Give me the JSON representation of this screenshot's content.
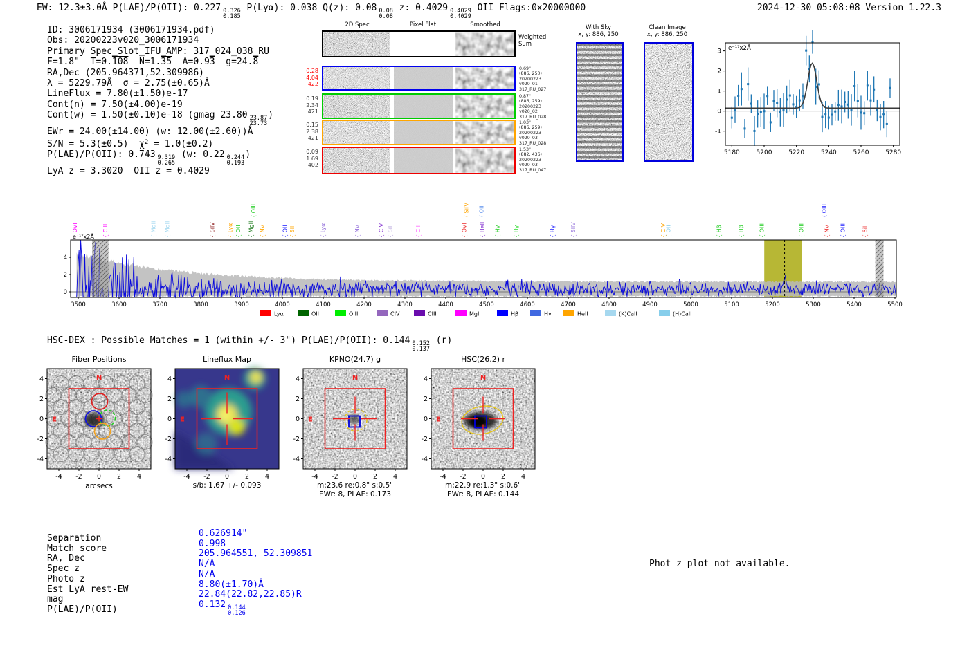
{
  "header": {
    "line": [
      {
        "t": "EW: 12.3±3.0Å  P(LAE)/P(OII): 0.227"
      },
      {
        "frac": [
          "0.326",
          "0.185"
        ]
      },
      {
        "t": "  P(Lyα): 0.038  Q(z): 0.08"
      },
      {
        "frac": [
          "0.08",
          "0.08"
        ]
      },
      {
        "t": "  z: 0.4029"
      },
      {
        "frac": [
          "0.4029",
          "0.4029"
        ]
      },
      {
        "t": " OII   Flags:0x20000000"
      }
    ],
    "datetime_version": "2024-12-30 05:08:08  Version 1.22.3"
  },
  "info_block": {
    "lines": [
      [
        {
          "t": "ID: 3006171934 (3006171934.pdf)"
        }
      ],
      [
        {
          "t": "Obs: 20200223v020_3006171934"
        }
      ],
      [
        {
          "t": "Primary Spec_Slot_IFU_AMP: 317_024_038_RU"
        }
      ],
      [
        {
          "t": "F=1.8\"  T=0."
        },
        {
          "ol": "108"
        },
        {
          "t": "  N=1."
        },
        {
          "ol": "35"
        },
        {
          "t": "  A=0.9"
        },
        {
          "ol": "3"
        },
        {
          "t": "  g=24."
        },
        {
          "ol": "8"
        }
      ],
      [
        {
          "t": "RA,Dec (205.964371,52.309986)"
        }
      ],
      [
        {
          "t": "λ = 5229.79Å  σ = 2.75(±0.65)Å"
        }
      ],
      [
        {
          "t": "LineFlux = 7.80(±1.50)e-17"
        }
      ],
      [
        {
          "t": "Cont(n) = 7.50(±4.00)e-19"
        }
      ],
      [
        {
          "t": "Cont(w) = 1.50(±0.10)e-18 (gmag 23.80"
        },
        {
          "frac": [
            "23.87",
            "23.73"
          ]
        },
        {
          "t": ")"
        }
      ],
      [
        {
          "t": "EWr = 24.00(±14.00) (w: 12.00(±2.60))Å"
        }
      ],
      [
        {
          "t": "S/N = 5.3(±0.5)  χ"
        },
        {
          "sup": "2"
        },
        {
          "t": " = 1.0(±0.2)"
        }
      ],
      [
        {
          "t": "P(LAE)/P(OII): 0.743"
        },
        {
          "frac": [
            "9.319",
            "0.265"
          ]
        },
        {
          "t": " (w: 0.22"
        },
        {
          "frac": [
            "0.244",
            "0.193"
          ]
        },
        {
          "t": ")"
        }
      ],
      [
        {
          "t": "LyA z = 3.3020  OII z = 0.4029"
        }
      ]
    ]
  },
  "spec2d": {
    "col_headers": [
      "2D Spec",
      "Pixel Flat",
      "Smoothed"
    ],
    "weighted_sum_label": "Weighted\nSum",
    "rows": [
      {
        "border": "#000000",
        "left": [],
        "left_color": "#000000",
        "right": []
      },
      {
        "border": "#0000ee",
        "left": [
          "0.28",
          "4.04",
          "422"
        ],
        "left_color": "#ff0000",
        "right": [
          "0.69\"",
          "(886, 250)",
          "20200223",
          "v020_01",
          "317_RU_027"
        ]
      },
      {
        "border": "#00cc00",
        "left": [
          "0.19",
          "2.34",
          "421"
        ],
        "left_color": "#333333",
        "right": [
          "0.87\"",
          "(886, 259)",
          "20200223",
          "v020_02",
          "317_RU_028"
        ]
      },
      {
        "border": "#ffa500",
        "left": [
          "0.15",
          "2.38",
          "421"
        ],
        "left_color": "#333333",
        "right": [
          "1.03\"",
          "(886, 259)",
          "20200223",
          "v020_03",
          "317_RU_028"
        ]
      },
      {
        "border": "#ee0000",
        "left": [
          "0.09",
          "1.69",
          "402"
        ],
        "left_color": "#333333",
        "right": [
          "1.53\"",
          "(882, 436)",
          "20200223",
          "v020_03",
          "317_RU_047"
        ]
      }
    ]
  },
  "sky_panels": {
    "with_sky": {
      "title": "With Sky",
      "coords": "x, y: 886, 250"
    },
    "clean": {
      "title": "Clean Image",
      "coords": "x, y: 886, 250"
    }
  },
  "chart_data": [
    {
      "type": "line",
      "name": "line-fit-zoom",
      "inset_label": "e⁻¹⁷x2Å",
      "xlim": [
        5176,
        5284
      ],
      "ylim": [
        -1.7,
        3.4
      ],
      "x_ticks": [
        5180,
        5200,
        5220,
        5240,
        5260,
        5280
      ],
      "y_ticks": [
        -1,
        0,
        1,
        2,
        3
      ],
      "series": [
        {
          "name": "observed-flux",
          "style": "errorbar",
          "color": "#1f77b4",
          "continuum": 0.15,
          "noise_sigma": 0.5,
          "typical_err": 0.7
        },
        {
          "name": "gaussian-fit",
          "style": "line",
          "color": "#3a3a3a",
          "center": 5229.79,
          "sigma": 2.75,
          "peak_above_baseline": 2.25,
          "baseline": 0.15
        }
      ],
      "hline_y": 0
    },
    {
      "type": "line",
      "name": "full-spectrum",
      "inset_label": "e⁻¹⁷x2Å",
      "xlim": [
        3493,
        5507
      ],
      "ylim": [
        -0.64,
        6.0
      ],
      "x_ticks": [
        3500,
        3600,
        3700,
        3800,
        3900,
        4000,
        4100,
        4200,
        4300,
        4400,
        4500,
        4600,
        4700,
        4800,
        4900,
        5000,
        5100,
        5200,
        5300,
        5400,
        5500
      ],
      "y_ticks": [
        0,
        2,
        4
      ],
      "detected_line_wavelength": 5229.79,
      "highlight_band": {
        "from": 5180,
        "to": 5272,
        "color": "#b3b32a"
      },
      "hatch_bands": [
        {
          "from": 3534,
          "to": 3574
        },
        {
          "from": 5452,
          "to": 5472
        }
      ],
      "envelope": {
        "base": 1.2,
        "amp": 3.25,
        "decay": 250
      },
      "signal": {
        "continuum": 0.3,
        "line_center": 5229.79,
        "line_sigma": 3.0,
        "line_peak": 1.9
      },
      "markers": [
        {
          "name": "OVI",
          "wl": 3497,
          "color": "#ff00ff",
          "tier": 0
        },
        {
          "name": "CIII",
          "wl": 3571,
          "color": "#ff00ff",
          "tier": 0
        },
        {
          "name": "MgII",
          "wl": 3689,
          "color": "#9fd6ef",
          "tier": 0
        },
        {
          "name": "MgII",
          "wl": 3723,
          "color": "#9fd6ef",
          "tier": 0
        },
        {
          "name": "SiIV",
          "wl": 3833,
          "color": "#8b1a1a",
          "tier": 0
        },
        {
          "name": "Lyα",
          "wl": 3877,
          "color": "#ffa500",
          "tier": 0
        },
        {
          "name": "OII",
          "wl": 3897,
          "color": "#22cc22",
          "tier": 0
        },
        {
          "name": "MgII",
          "wl": 3928,
          "color": "#1a7a1a",
          "tier": 0
        },
        {
          "name": "OIII",
          "wl": 3934,
          "color": "#22cc22",
          "tier": 1
        },
        {
          "name": "NV",
          "wl": 3956,
          "color": "#ffa500",
          "tier": 0
        },
        {
          "name": "OII",
          "wl": 4011,
          "color": "#2222ff",
          "tier": 0
        },
        {
          "name": "SiII",
          "wl": 4029,
          "color": "#ffa500",
          "tier": 0
        },
        {
          "name": "Lyα",
          "wl": 4104,
          "color": "#9370db",
          "tier": 0
        },
        {
          "name": "NV",
          "wl": 4188,
          "color": "#9370db",
          "tier": 0
        },
        {
          "name": "CIV",
          "wl": 4247,
          "color": "#7d26cd",
          "tier": 0
        },
        {
          "name": "SiII",
          "wl": 4269,
          "color": "#b09cd8",
          "tier": 0
        },
        {
          "name": "CII",
          "wl": 4337,
          "color": "#ff66ff",
          "tier": 0
        },
        {
          "name": "OVI",
          "wl": 4450,
          "color": "#ee3333",
          "tier": 0
        },
        {
          "name": "SiIV",
          "wl": 4455,
          "color": "#ffa500",
          "tier": 1
        },
        {
          "name": "OII",
          "wl": 4492,
          "color": "#6495ed",
          "tier": 1
        },
        {
          "name": "HeII",
          "wl": 4494,
          "color": "#7d26cd",
          "tier": 0
        },
        {
          "name": "Hγ",
          "wl": 4531,
          "color": "#22cc22",
          "tier": 0
        },
        {
          "name": "Hγ",
          "wl": 4577,
          "color": "#33dd33",
          "tier": 0
        },
        {
          "name": "Hγ",
          "wl": 4666,
          "color": "#2222ff",
          "tier": 0
        },
        {
          "name": "SiIV",
          "wl": 4717,
          "color": "#9370db",
          "tier": 0
        },
        {
          "name": "CIV",
          "wl": 4937,
          "color": "#ffa500",
          "tier": 0
        },
        {
          "name": "OII",
          "wl": 4950,
          "color": "#87ceeb",
          "tier": 0
        },
        {
          "name": "Hβ",
          "wl": 5074,
          "color": "#22cc22",
          "tier": 0
        },
        {
          "name": "Hβ",
          "wl": 5128,
          "color": "#22cc22",
          "tier": 0
        },
        {
          "name": "OIII",
          "wl": 5179,
          "color": "#22cc22",
          "tier": 0
        },
        {
          "name": "OIII",
          "wl": 5275,
          "color": "#22cc22",
          "tier": 0
        },
        {
          "name": "OIII",
          "wl": 5331,
          "color": "#2222ff",
          "tier": 1
        },
        {
          "name": "NV",
          "wl": 5338,
          "color": "#ee3333",
          "tier": 0
        },
        {
          "name": "OIII",
          "wl": 5377,
          "color": "#2222ff",
          "tier": 0
        },
        {
          "name": "SiII",
          "wl": 5431,
          "color": "#ee3333",
          "tier": 0
        }
      ],
      "legend": [
        {
          "label": "Lyα",
          "color": "#ff0000"
        },
        {
          "label": "OII",
          "color": "#006400"
        },
        {
          "label": "OIII",
          "color": "#00ee00"
        },
        {
          "label": "CIV",
          "color": "#9467bd"
        },
        {
          "label": "CIII",
          "color": "#6a0dad"
        },
        {
          "label": "MgII",
          "color": "#ff00ff"
        },
        {
          "label": "Hβ",
          "color": "#0000ff"
        },
        {
          "label": "Hγ",
          "color": "#4169e1"
        },
        {
          "label": "HeII",
          "color": "#ffa500"
        },
        {
          "label": "(K)CaII",
          "color": "#a6d8ef"
        },
        {
          "label": "(H)CaII",
          "color": "#87ceeb"
        }
      ],
      "legend_position": "below-axis"
    }
  ],
  "hsc_dex": {
    "line": [
      {
        "t": "HSC-DEX : Possible Matches = 1 (within +/- 3\")  P(LAE)/P(OII): 0.144"
      },
      {
        "frac": [
          "0.152",
          "0.137"
        ]
      },
      {
        "t": " (r)"
      }
    ]
  },
  "cutouts": {
    "xlabel": "arcsecs",
    "ticks": [
      -4,
      -2,
      0,
      2,
      4
    ],
    "compass": {
      "north": "N",
      "east": "E"
    },
    "panels": [
      {
        "title": "Fiber Positions",
        "type": "fibers",
        "caption1": "",
        "caption2": ""
      },
      {
        "title": "Lineflux Map",
        "type": "fluxmap",
        "caption1": "s/b: 1.67 +/- 0.093",
        "caption2": ""
      },
      {
        "title": "KPNO(24.7) g",
        "type": "image-g",
        "caption1": "m:23.6  re:0.8\"  s:0.5\"",
        "caption2": "EWr: 8, PLAE: 0.173"
      },
      {
        "title": "HSC(26.2) r",
        "type": "image-r",
        "caption1": "m:22.9  re:1.3\"  s:0.6\"",
        "caption2": "EWr: 8, PLAE: 0.144"
      }
    ]
  },
  "match_table": {
    "rows": [
      {
        "label": "Separation",
        "value": [
          {
            "t": "0.626914\""
          }
        ]
      },
      {
        "label": "Match score",
        "value": [
          {
            "t": "0.998"
          }
        ]
      },
      {
        "label": "RA, Dec",
        "value": [
          {
            "t": "205.964551, 52.309851"
          }
        ]
      },
      {
        "label": "Spec z",
        "value": [
          {
            "t": "N/A"
          }
        ]
      },
      {
        "label": "Photo z",
        "value": [
          {
            "t": "N/A"
          }
        ]
      },
      {
        "label": "Est LyA rest-EW",
        "value": [
          {
            "t": "8.80(±1.70)Å"
          }
        ]
      },
      {
        "label": "mag",
        "value": [
          {
            "t": "22.84(22.82,22.85)R"
          }
        ]
      },
      {
        "label": "P(LAE)/P(OII)",
        "value": [
          {
            "t": "0.132"
          },
          {
            "frac": [
              "0.144",
              "0.126"
            ]
          }
        ]
      }
    ]
  },
  "photz_note": "Phot z plot not available.",
  "colors": {
    "value_blue": "#0000ee",
    "annotation_red": "#ff0000",
    "marker_red": "#ee2222",
    "selection_yellow": "#e6c619",
    "band_olive": "#b3b32a",
    "series_blue": "#1f77b4",
    "spectrum_blue": "#0808dd"
  }
}
